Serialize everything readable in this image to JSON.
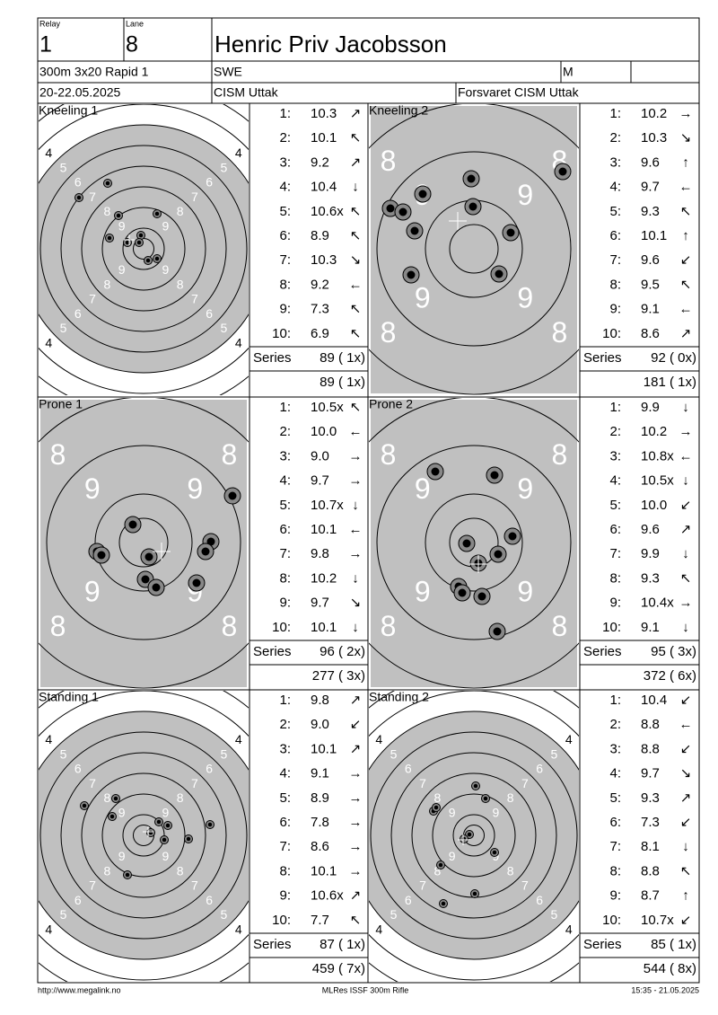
{
  "header": {
    "relay_label": "Relay",
    "relay": "1",
    "lane_label": "Lane",
    "lane": "8",
    "name": "Henric Priv Jacobsson",
    "event": "300m 3x20 Rapid 1",
    "nation": "SWE",
    "gender": "M",
    "date": "20-22.05.2025",
    "club": "CISM Uttak",
    "team": "Forsvaret CISM Uttak"
  },
  "series_label": "Series",
  "panels": [
    {
      "title": "Kneeling 1",
      "zoomed": false,
      "ring_labels": [
        "4",
        "5",
        "6",
        "7",
        "8",
        "9"
      ],
      "shots": [
        {
          "no": "1:",
          "score": "10.3",
          "dir": "↗"
        },
        {
          "no": "2:",
          "score": "10.1",
          "dir": "↖"
        },
        {
          "no": "3:",
          "score": "9.2",
          "dir": "↗"
        },
        {
          "no": "4:",
          "score": "10.4",
          "dir": "↓"
        },
        {
          "no": "5:",
          "score": "10.6x",
          "dir": "↖"
        },
        {
          "no": "6:",
          "score": "8.9",
          "dir": "↖"
        },
        {
          "no": "7:",
          "score": "10.3",
          "dir": "↘"
        },
        {
          "no": "8:",
          "score": "9.2",
          "dir": "←"
        },
        {
          "no": "9:",
          "score": "7.3",
          "dir": "↖"
        },
        {
          "no": "10:",
          "score": "6.9",
          "dir": "↖"
        }
      ],
      "series_total": "89 ( 1x)",
      "running_total": "89 ( 1x)"
    },
    {
      "title": "Kneeling 2",
      "zoomed": true,
      "ring_labels": [
        "8",
        "9"
      ],
      "shots": [
        {
          "no": "1:",
          "score": "10.2",
          "dir": "→"
        },
        {
          "no": "2:",
          "score": "10.3",
          "dir": "↘"
        },
        {
          "no": "3:",
          "score": "9.6",
          "dir": "↑"
        },
        {
          "no": "4:",
          "score": "9.7",
          "dir": "←"
        },
        {
          "no": "5:",
          "score": "9.3",
          "dir": "↖"
        },
        {
          "no": "6:",
          "score": "10.1",
          "dir": "↑"
        },
        {
          "no": "7:",
          "score": "9.6",
          "dir": "↙"
        },
        {
          "no": "8:",
          "score": "9.5",
          "dir": "↖"
        },
        {
          "no": "9:",
          "score": "9.1",
          "dir": "←"
        },
        {
          "no": "10:",
          "score": "8.6",
          "dir": "↗"
        }
      ],
      "series_total": "92 ( 0x)",
      "running_total": "181 ( 1x)"
    },
    {
      "title": "Prone 1",
      "zoomed": true,
      "ring_labels": [
        "8",
        "9"
      ],
      "shots": [
        {
          "no": "1:",
          "score": "10.5x",
          "dir": "↖"
        },
        {
          "no": "2:",
          "score": "10.0",
          "dir": "←"
        },
        {
          "no": "3:",
          "score": "9.0",
          "dir": "→"
        },
        {
          "no": "4:",
          "score": "9.7",
          "dir": "→"
        },
        {
          "no": "5:",
          "score": "10.7x",
          "dir": "↓"
        },
        {
          "no": "6:",
          "score": "10.1",
          "dir": "←"
        },
        {
          "no": "7:",
          "score": "9.8",
          "dir": "→"
        },
        {
          "no": "8:",
          "score": "10.2",
          "dir": "↓"
        },
        {
          "no": "9:",
          "score": "9.7",
          "dir": "↘"
        },
        {
          "no": "10:",
          "score": "10.1",
          "dir": "↓"
        }
      ],
      "series_total": "96 ( 2x)",
      "running_total": "277 ( 3x)"
    },
    {
      "title": "Prone 2",
      "zoomed": true,
      "ring_labels": [
        "8",
        "9"
      ],
      "shots": [
        {
          "no": "1:",
          "score": "9.9",
          "dir": "↓"
        },
        {
          "no": "2:",
          "score": "10.2",
          "dir": "→"
        },
        {
          "no": "3:",
          "score": "10.8x",
          "dir": "←"
        },
        {
          "no": "4:",
          "score": "10.5x",
          "dir": "↓"
        },
        {
          "no": "5:",
          "score": "10.0",
          "dir": "↙"
        },
        {
          "no": "6:",
          "score": "9.6",
          "dir": "↗"
        },
        {
          "no": "7:",
          "score": "9.9",
          "dir": "↓"
        },
        {
          "no": "8:",
          "score": "9.3",
          "dir": "↖"
        },
        {
          "no": "9:",
          "score": "10.4x",
          "dir": "→"
        },
        {
          "no": "10:",
          "score": "9.1",
          "dir": "↓"
        }
      ],
      "series_total": "95 ( 3x)",
      "running_total": "372 ( 6x)"
    },
    {
      "title": "Standing 1",
      "zoomed": false,
      "ring_labels": [
        "4",
        "5",
        "6",
        "7",
        "8",
        "9"
      ],
      "shots": [
        {
          "no": "1:",
          "score": "9.8",
          "dir": "↗"
        },
        {
          "no": "2:",
          "score": "9.0",
          "dir": "↙"
        },
        {
          "no": "3:",
          "score": "10.1",
          "dir": "↗"
        },
        {
          "no": "4:",
          "score": "9.1",
          "dir": "→"
        },
        {
          "no": "5:",
          "score": "8.9",
          "dir": "→"
        },
        {
          "no": "6:",
          "score": "7.8",
          "dir": "→"
        },
        {
          "no": "7:",
          "score": "8.6",
          "dir": "→"
        },
        {
          "no": "8:",
          "score": "10.1",
          "dir": "→"
        },
        {
          "no": "9:",
          "score": "10.6x",
          "dir": "↗"
        },
        {
          "no": "10:",
          "score": "7.7",
          "dir": "↖"
        }
      ],
      "series_total": "87 ( 1x)",
      "running_total": "459 ( 7x)"
    },
    {
      "title": "Standing 2",
      "zoomed": false,
      "ring_labels": [
        "4",
        "5",
        "6",
        "7",
        "8",
        "9"
      ],
      "shots": [
        {
          "no": "1:",
          "score": "10.4",
          "dir": "↙"
        },
        {
          "no": "2:",
          "score": "8.8",
          "dir": "←"
        },
        {
          "no": "3:",
          "score": "8.8",
          "dir": "↙"
        },
        {
          "no": "4:",
          "score": "9.7",
          "dir": "↘"
        },
        {
          "no": "5:",
          "score": "9.3",
          "dir": "↗"
        },
        {
          "no": "6:",
          "score": "7.3",
          "dir": "↙"
        },
        {
          "no": "7:",
          "score": "8.1",
          "dir": "↓"
        },
        {
          "no": "8:",
          "score": "8.8",
          "dir": "↖"
        },
        {
          "no": "9:",
          "score": "8.7",
          "dir": "↑"
        },
        {
          "no": "10:",
          "score": "10.7x",
          "dir": "↙"
        }
      ],
      "series_total": "85 ( 1x)",
      "running_total": "544 ( 8x)"
    }
  ],
  "footer": {
    "url": "http://www.megalink.no",
    "program": "MLRes ISSF 300m Rifle",
    "timestamp": "15:35 - 21.05.2025"
  }
}
